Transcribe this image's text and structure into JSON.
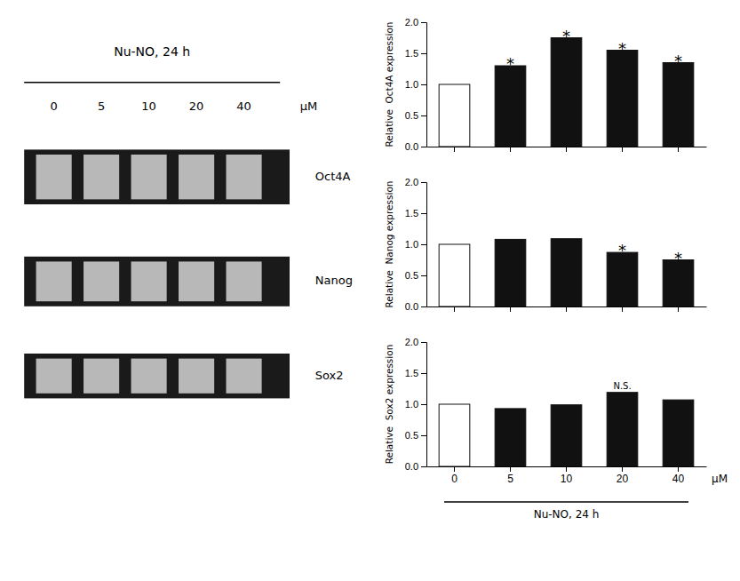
{
  "chart_data": [
    {
      "type": "gel",
      "title": "Nu-NO, 24 h",
      "categories": [
        "0",
        "5",
        "10",
        "20",
        "40"
      ],
      "xlabel": "μM",
      "annotations": [
        "Oct4A",
        "Nanog",
        "Sox2"
      ]
    },
    {
      "type": "bar",
      "ylabel": "Relative  Oct4A expression",
      "categories": [
        "0",
        "5",
        "10",
        "20",
        "40"
      ],
      "values": [
        1.0,
        1.3,
        1.75,
        1.55,
        1.35
      ],
      "colors": [
        "#ffffff",
        "#111111",
        "#111111",
        "#111111",
        "#111111"
      ],
      "ylim": [
        0.0,
        2.0
      ],
      "yticks": [
        {
          "value": 0.0,
          "label": "0.0"
        },
        {
          "value": 0.5,
          "label": "0.5"
        },
        {
          "value": 1.0,
          "label": "1.0"
        },
        {
          "value": 1.5,
          "label": "1.5"
        },
        {
          "value": 2.0,
          "label": "2.0"
        }
      ],
      "grid": false,
      "tick_labels": "y",
      "annotations": [
        {
          "text": "*",
          "x": "5"
        },
        {
          "text": "*",
          "x": "10"
        },
        {
          "text": "*",
          "x": "20"
        },
        {
          "text": "*",
          "x": "40"
        }
      ]
    },
    {
      "type": "bar",
      "ylabel": "Relative  Nanog expression",
      "categories": [
        "0",
        "5",
        "10",
        "20",
        "40"
      ],
      "values": [
        1.0,
        1.08,
        1.09,
        0.87,
        0.75
      ],
      "colors": [
        "#ffffff",
        "#111111",
        "#111111",
        "#111111",
        "#111111"
      ],
      "ylim": [
        0.0,
        2.0
      ],
      "yticks": [
        {
          "value": 0.0,
          "label": "0.0"
        },
        {
          "value": 0.5,
          "label": "0.5"
        },
        {
          "value": 1.0,
          "label": "1.0"
        },
        {
          "value": 1.5,
          "label": "1.5"
        },
        {
          "value": 2.0,
          "label": "2.0"
        }
      ],
      "grid": false,
      "tick_labels": "y",
      "annotations": [
        {
          "text": "*",
          "x": "20"
        },
        {
          "text": "*",
          "x": "40"
        }
      ]
    },
    {
      "type": "bar",
      "ylabel": "Relative  Sox2 expression",
      "categories": [
        "0",
        "5",
        "10",
        "20",
        "40"
      ],
      "values": [
        1.0,
        0.93,
        0.99,
        1.19,
        1.07
      ],
      "colors": [
        "#ffffff",
        "#111111",
        "#111111",
        "#111111",
        "#111111"
      ],
      "ylim": [
        0.0,
        2.0
      ],
      "yticks": [
        {
          "value": 0.0,
          "label": "0.0"
        },
        {
          "value": 0.5,
          "label": "0.5"
        },
        {
          "value": 1.0,
          "label": "1.0"
        },
        {
          "value": 1.5,
          "label": "1.5"
        },
        {
          "value": 2.0,
          "label": "2.0"
        }
      ],
      "grid": false,
      "xlabel": "μM",
      "annotations": [
        {
          "text": "N.S.",
          "x": "20"
        },
        {
          "text": "Nu-NO, 24 h"
        }
      ]
    }
  ]
}
